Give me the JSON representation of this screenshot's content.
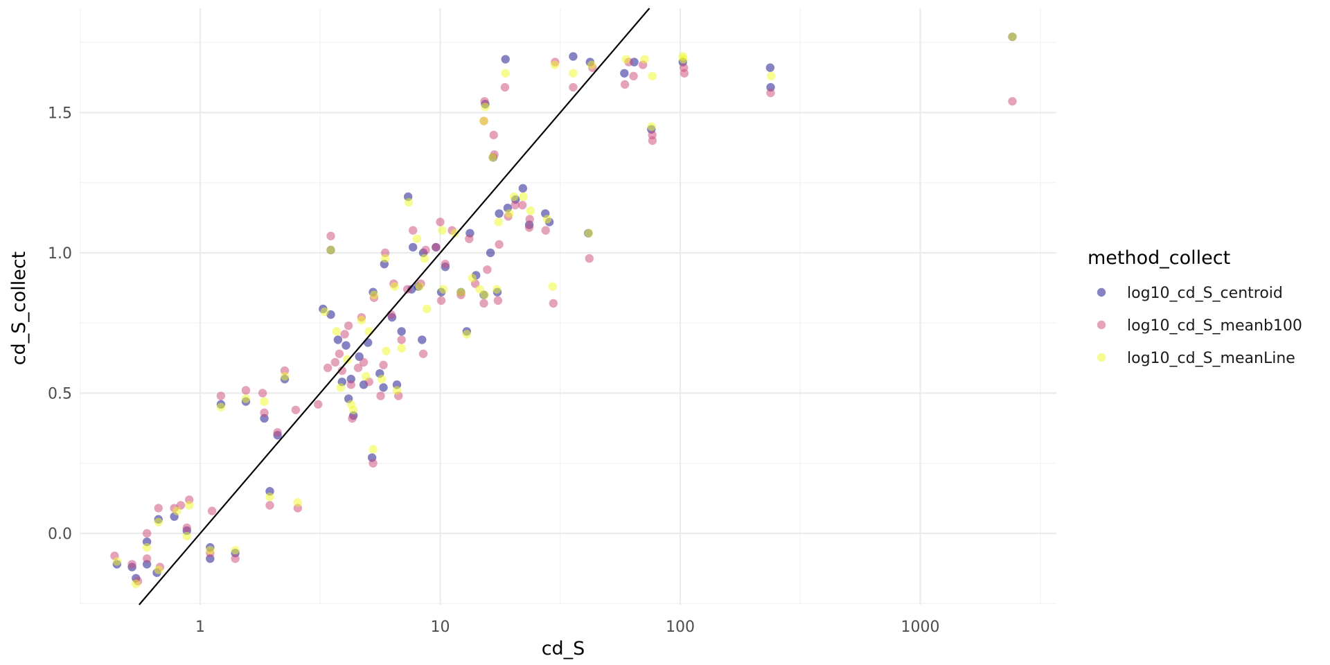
{
  "chart_data": {
    "type": "scatter",
    "xlabel": "cd_S",
    "ylabel": "cd_S_collect",
    "x_scale": "log10",
    "xlim": [
      0.3,
      3500
    ],
    "ylim": [
      -0.2,
      1.88
    ],
    "x_ticks": [
      1,
      10,
      100,
      1000
    ],
    "x_tick_labels": [
      "1",
      "10",
      "100",
      "1000"
    ],
    "y_ticks": [
      0,
      0.5,
      1,
      1.5
    ],
    "y_tick_labels": [
      "0.0",
      "0.5",
      "1.0",
      "1.5"
    ],
    "grid": true,
    "legend": {
      "title": "method_collect",
      "placement": "right"
    },
    "reference_line": {
      "slope": 1,
      "intercept": 0,
      "color": "#000000"
    },
    "series": [
      {
        "name": "log10_cd_S_centroid",
        "color": "#0d0887",
        "points": [
          [
            0.45,
            -0.11
          ],
          [
            0.52,
            -0.12
          ],
          [
            0.54,
            -0.16
          ],
          [
            0.6,
            -0.11
          ],
          [
            0.6,
            -0.03
          ],
          [
            0.66,
            -0.14
          ],
          [
            0.67,
            0.05
          ],
          [
            0.78,
            0.06
          ],
          [
            0.88,
            0.01
          ],
          [
            1.1,
            -0.09
          ],
          [
            1.1,
            -0.05
          ],
          [
            1.22,
            0.46
          ],
          [
            1.4,
            -0.07
          ],
          [
            1.55,
            0.47
          ],
          [
            1.85,
            0.41
          ],
          [
            1.95,
            0.15
          ],
          [
            2.1,
            0.35
          ],
          [
            2.25,
            0.55
          ],
          [
            3.25,
            0.8
          ],
          [
            3.5,
            0.78
          ],
          [
            3.5,
            1.01
          ],
          [
            3.75,
            0.69
          ],
          [
            3.9,
            0.54
          ],
          [
            4.05,
            0.67
          ],
          [
            4.15,
            0.48
          ],
          [
            4.25,
            0.55
          ],
          [
            4.35,
            0.42
          ],
          [
            4.6,
            0.63
          ],
          [
            4.8,
            0.53
          ],
          [
            5.0,
            0.68
          ],
          [
            5.2,
            0.27
          ],
          [
            5.25,
            0.86
          ],
          [
            5.6,
            0.57
          ],
          [
            5.8,
            0.52
          ],
          [
            5.85,
            0.96
          ],
          [
            6.3,
            0.77
          ],
          [
            6.6,
            0.53
          ],
          [
            6.9,
            0.72
          ],
          [
            7.35,
            1.2
          ],
          [
            7.6,
            0.87
          ],
          [
            7.7,
            1.02
          ],
          [
            8.1,
            0.88
          ],
          [
            8.4,
            0.69
          ],
          [
            8.5,
            1.0
          ],
          [
            9.6,
            1.02
          ],
          [
            10.1,
            0.86
          ],
          [
            10.5,
            0.95
          ],
          [
            12.2,
            0.86
          ],
          [
            12.9,
            0.72
          ],
          [
            13.3,
            1.07
          ],
          [
            14.1,
            0.92
          ],
          [
            15.2,
            0.85
          ],
          [
            15.4,
            1.53
          ],
          [
            16.2,
            1.0
          ],
          [
            16.6,
            1.34
          ],
          [
            17.3,
            0.86
          ],
          [
            17.6,
            1.14
          ],
          [
            18.7,
            1.69
          ],
          [
            19.1,
            1.16
          ],
          [
            20.6,
            1.19
          ],
          [
            22.1,
            1.23
          ],
          [
            23.5,
            1.1
          ],
          [
            27.4,
            1.14
          ],
          [
            28.5,
            1.11
          ],
          [
            35.8,
            1.7
          ],
          [
            41.4,
            1.07
          ],
          [
            42.1,
            1.68
          ],
          [
            58.5,
            1.64
          ],
          [
            64.3,
            1.68
          ],
          [
            75.8,
            1.44
          ],
          [
            102.5,
            1.68
          ],
          [
            237,
            1.66
          ],
          [
            238,
            1.59
          ],
          [
            2420,
            1.77
          ]
        ]
      },
      {
        "name": "log10_cd_S_meanb100",
        "color": "#cc4778",
        "points": [
          [
            0.44,
            -0.08
          ],
          [
            0.52,
            -0.11
          ],
          [
            0.55,
            -0.17
          ],
          [
            0.6,
            0.0
          ],
          [
            0.6,
            -0.09
          ],
          [
            0.67,
            0.09
          ],
          [
            0.68,
            -0.12
          ],
          [
            0.78,
            0.09
          ],
          [
            0.83,
            0.1
          ],
          [
            0.9,
            0.12
          ],
          [
            0.88,
            0.02
          ],
          [
            1.12,
            0.08
          ],
          [
            1.1,
            -0.07
          ],
          [
            1.22,
            0.49
          ],
          [
            1.4,
            -0.09
          ],
          [
            1.55,
            0.51
          ],
          [
            1.82,
            0.5
          ],
          [
            1.85,
            0.43
          ],
          [
            1.95,
            0.1
          ],
          [
            2.1,
            0.36
          ],
          [
            2.25,
            0.58
          ],
          [
            2.5,
            0.44
          ],
          [
            2.55,
            0.09
          ],
          [
            3.1,
            0.46
          ],
          [
            3.4,
            0.59
          ],
          [
            3.5,
            1.06
          ],
          [
            3.65,
            0.61
          ],
          [
            3.8,
            0.64
          ],
          [
            3.9,
            0.58
          ],
          [
            4.0,
            0.71
          ],
          [
            4.15,
            0.74
          ],
          [
            4.25,
            0.53
          ],
          [
            4.3,
            0.41
          ],
          [
            4.55,
            0.59
          ],
          [
            4.7,
            0.77
          ],
          [
            4.8,
            0.61
          ],
          [
            5.05,
            0.54
          ],
          [
            5.25,
            0.25
          ],
          [
            5.3,
            0.84
          ],
          [
            5.65,
            0.49
          ],
          [
            5.8,
            0.6
          ],
          [
            5.9,
            1.0
          ],
          [
            6.25,
            0.78
          ],
          [
            6.4,
            0.89
          ],
          [
            6.7,
            0.49
          ],
          [
            6.9,
            0.69
          ],
          [
            7.3,
            0.87
          ],
          [
            7.7,
            1.08
          ],
          [
            8.3,
            0.89
          ],
          [
            8.5,
            0.64
          ],
          [
            8.7,
            1.01
          ],
          [
            9.6,
            1.02
          ],
          [
            10.0,
            1.11
          ],
          [
            10.1,
            0.83
          ],
          [
            10.5,
            0.96
          ],
          [
            11.2,
            1.08
          ],
          [
            12.2,
            0.85
          ],
          [
            13.2,
            1.05
          ],
          [
            14.0,
            0.89
          ],
          [
            15.2,
            0.82
          ],
          [
            15.2,
            1.47
          ],
          [
            15.3,
            1.54
          ],
          [
            15.7,
            0.94
          ],
          [
            16.7,
            1.42
          ],
          [
            16.8,
            1.35
          ],
          [
            17.4,
            0.83
          ],
          [
            17.6,
            1.03
          ],
          [
            18.6,
            1.59
          ],
          [
            19.2,
            1.13
          ],
          [
            20.5,
            1.17
          ],
          [
            22.0,
            1.17
          ],
          [
            23.6,
            1.12
          ],
          [
            23.5,
            1.09
          ],
          [
            27.5,
            1.08
          ],
          [
            29.6,
            0.82
          ],
          [
            30.1,
            1.68
          ],
          [
            35.8,
            1.59
          ],
          [
            41.8,
            0.98
          ],
          [
            43.1,
            1.66
          ],
          [
            58.8,
            1.6
          ],
          [
            61.0,
            1.68
          ],
          [
            63.9,
            1.63
          ],
          [
            69.9,
            1.67
          ],
          [
            76.5,
            1.42
          ],
          [
            76.6,
            1.4
          ],
          [
            103.5,
            1.66
          ],
          [
            104,
            1.64
          ],
          [
            238,
            1.57
          ],
          [
            2420,
            1.54
          ]
        ]
      },
      {
        "name": "log10_cd_S_meanLine",
        "color": "#f0f921",
        "points": [
          [
            0.45,
            -0.1
          ],
          [
            0.54,
            -0.18
          ],
          [
            0.6,
            -0.05
          ],
          [
            0.67,
            0.04
          ],
          [
            0.67,
            -0.13
          ],
          [
            0.8,
            0.08
          ],
          [
            0.88,
            -0.01
          ],
          [
            0.9,
            0.1
          ],
          [
            1.1,
            -0.06
          ],
          [
            1.22,
            0.45
          ],
          [
            1.4,
            -0.06
          ],
          [
            1.55,
            0.48
          ],
          [
            1.85,
            0.47
          ],
          [
            1.95,
            0.13
          ],
          [
            2.25,
            0.56
          ],
          [
            2.55,
            0.11
          ],
          [
            3.3,
            0.79
          ],
          [
            3.5,
            1.01
          ],
          [
            3.7,
            0.72
          ],
          [
            3.85,
            0.52
          ],
          [
            4.1,
            0.62
          ],
          [
            4.25,
            0.46
          ],
          [
            4.35,
            0.44
          ],
          [
            4.7,
            0.76
          ],
          [
            4.9,
            0.56
          ],
          [
            5.05,
            0.72
          ],
          [
            5.25,
            0.3
          ],
          [
            5.3,
            0.85
          ],
          [
            5.7,
            0.55
          ],
          [
            5.9,
            0.98
          ],
          [
            5.95,
            0.65
          ],
          [
            6.45,
            0.88
          ],
          [
            6.6,
            0.51
          ],
          [
            6.9,
            0.66
          ],
          [
            7.4,
            1.18
          ],
          [
            8.0,
            1.05
          ],
          [
            8.2,
            0.88
          ],
          [
            8.6,
            0.98
          ],
          [
            8.8,
            0.8
          ],
          [
            10.2,
            1.08
          ],
          [
            10.3,
            0.87
          ],
          [
            11.5,
            1.07
          ],
          [
            12.2,
            0.86
          ],
          [
            12.9,
            0.71
          ],
          [
            13.6,
            0.91
          ],
          [
            14.6,
            0.87
          ],
          [
            15.3,
            0.85
          ],
          [
            15.2,
            1.47
          ],
          [
            15.4,
            1.52
          ],
          [
            16.5,
            1.34
          ],
          [
            17.2,
            0.87
          ],
          [
            17.5,
            1.11
          ],
          [
            18.7,
            1.64
          ],
          [
            19.4,
            1.14
          ],
          [
            20.3,
            1.2
          ],
          [
            22.2,
            1.2
          ],
          [
            23.8,
            1.15
          ],
          [
            27.9,
            1.12
          ],
          [
            29.4,
            0.88
          ],
          [
            30.0,
            1.67
          ],
          [
            35.8,
            1.64
          ],
          [
            41.6,
            1.07
          ],
          [
            42.8,
            1.67
          ],
          [
            59.5,
            1.69
          ],
          [
            71.0,
            1.69
          ],
          [
            75.9,
            1.45
          ],
          [
            76.5,
            1.63
          ],
          [
            102.5,
            1.7
          ],
          [
            103,
            1.69
          ],
          [
            239,
            1.63
          ],
          [
            2420,
            1.77
          ]
        ]
      }
    ]
  }
}
